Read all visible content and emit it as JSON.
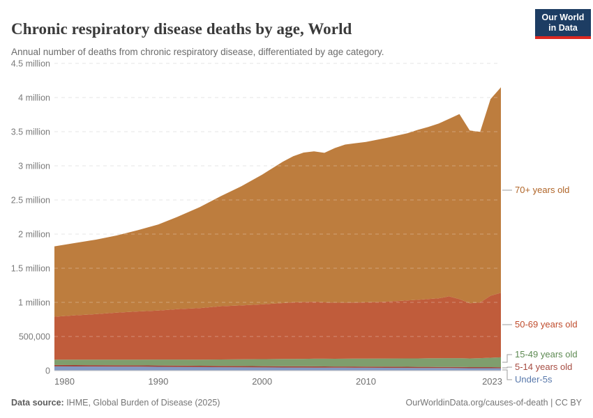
{
  "header": {
    "title": "Chronic respiratory disease deaths by age, World",
    "subtitle": "Annual number of deaths from chronic respiratory disease, differentiated by age category."
  },
  "logo": {
    "line1": "Our World",
    "line2": "in Data",
    "bg_color": "#1d3d63",
    "accent_color": "#dc2820"
  },
  "footer": {
    "source_label": "Data source:",
    "source_text": " IHME, Global Burden of Disease (2025)",
    "link_text": "OurWorldinData.org/causes-of-death",
    "license_text": " | CC BY"
  },
  "chart_data": {
    "type": "area",
    "stacked": true,
    "unit": "deaths (millions)",
    "xlim": [
      1980,
      2023
    ],
    "ylim": [
      0,
      4.5
    ],
    "grid": "dashed-horizontal",
    "legend_position": "right",
    "x": [
      1980,
      1982,
      1984,
      1986,
      1988,
      1990,
      1992,
      1994,
      1996,
      1998,
      2000,
      2002,
      2003,
      2004,
      2005,
      2006,
      2007,
      2008,
      2010,
      2012,
      2014,
      2015,
      2016,
      2017,
      2018,
      2019,
      2020,
      2021,
      2022,
      2023
    ],
    "series": [
      {
        "name": "Under-5s",
        "color": "#8399c4",
        "values": [
          0.062,
          0.061,
          0.06,
          0.059,
          0.058,
          0.056,
          0.054,
          0.052,
          0.05,
          0.048,
          0.047,
          0.046,
          0.045,
          0.045,
          0.044,
          0.044,
          0.043,
          0.043,
          0.042,
          0.041,
          0.04,
          0.039,
          0.039,
          0.038,
          0.038,
          0.037,
          0.036,
          0.036,
          0.036,
          0.035
        ]
      },
      {
        "name": "5-14 years old",
        "color": "#a04439",
        "values": [
          0.021,
          0.021,
          0.021,
          0.02,
          0.02,
          0.02,
          0.02,
          0.019,
          0.019,
          0.019,
          0.018,
          0.018,
          0.018,
          0.018,
          0.018,
          0.017,
          0.017,
          0.017,
          0.017,
          0.017,
          0.016,
          0.016,
          0.016,
          0.016,
          0.016,
          0.016,
          0.015,
          0.015,
          0.015,
          0.015
        ]
      },
      {
        "name": "15-49 years old",
        "color": "#7f9e6d",
        "values": [
          0.077,
          0.078,
          0.079,
          0.081,
          0.083,
          0.086,
          0.088,
          0.09,
          0.094,
          0.098,
          0.103,
          0.106,
          0.107,
          0.109,
          0.112,
          0.113,
          0.113,
          0.114,
          0.118,
          0.12,
          0.123,
          0.124,
          0.126,
          0.128,
          0.129,
          0.13,
          0.128,
          0.132,
          0.138,
          0.145
        ]
      },
      {
        "name": "50-69 years old",
        "color": "#c05c3b",
        "values": [
          0.63,
          0.65,
          0.668,
          0.69,
          0.705,
          0.718,
          0.74,
          0.755,
          0.78,
          0.79,
          0.802,
          0.82,
          0.83,
          0.832,
          0.833,
          0.826,
          0.822,
          0.822,
          0.823,
          0.831,
          0.849,
          0.858,
          0.867,
          0.876,
          0.905,
          0.864,
          0.808,
          0.814,
          0.908,
          0.945
        ]
      },
      {
        "name": "70+ years old",
        "color": "#bd7d3e",
        "values": [
          1.03,
          1.06,
          1.09,
          1.13,
          1.19,
          1.26,
          1.36,
          1.48,
          1.61,
          1.745,
          1.9,
          2.07,
          2.14,
          2.19,
          2.205,
          2.19,
          2.265,
          2.315,
          2.35,
          2.4,
          2.45,
          2.49,
          2.52,
          2.56,
          2.6,
          2.71,
          2.53,
          2.5,
          2.88,
          3.01
        ]
      }
    ],
    "y_ticks": [
      {
        "v": 0,
        "label": "0"
      },
      {
        "v": 0.5,
        "label": "500,000"
      },
      {
        "v": 1,
        "label": "1 million"
      },
      {
        "v": 1.5,
        "label": "1.5 million"
      },
      {
        "v": 2,
        "label": "2 million"
      },
      {
        "v": 2.5,
        "label": "2.5 million"
      },
      {
        "v": 3,
        "label": "3 million"
      },
      {
        "v": 3.5,
        "label": "3.5 million"
      },
      {
        "v": 4,
        "label": "4 million"
      },
      {
        "v": 4.5,
        "label": "4.5 million"
      }
    ],
    "x_ticks": [
      {
        "year": 1980,
        "label": "1980",
        "align": "start"
      },
      {
        "year": 1990,
        "label": "1990",
        "align": "middle"
      },
      {
        "year": 2000,
        "label": "2000",
        "align": "middle"
      },
      {
        "year": 2010,
        "label": "2010",
        "align": "middle"
      },
      {
        "year": 2023,
        "label": "2023",
        "align": "end"
      }
    ],
    "legend": [
      {
        "label": "70+ years old",
        "text_color": "#b06528",
        "label_y": 273,
        "anchor_y": 273
      },
      {
        "label": "50-69 years old",
        "text_color": "#bf4b2b",
        "label_y": 466,
        "anchor_y": 466
      },
      {
        "label": "15-49 years old",
        "text_color": "#5d8a52",
        "label_y": 509,
        "anchor_y": 520
      },
      {
        "label": "5-14 years old",
        "text_color": "#a64c42",
        "label_y": 527,
        "anchor_y": 528
      },
      {
        "label": "Under-5s",
        "text_color": "#5878ab",
        "label_y": 545,
        "anchor_y": 531
      }
    ]
  }
}
